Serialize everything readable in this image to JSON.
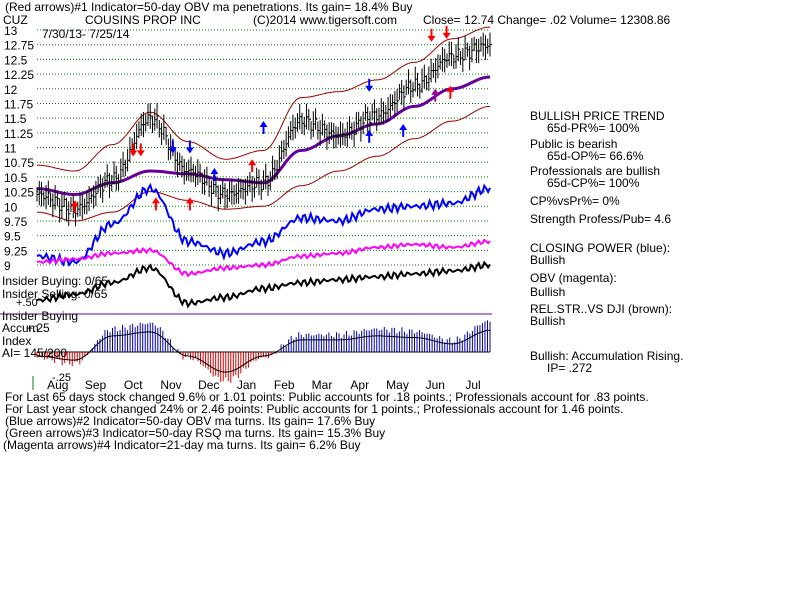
{
  "header": {
    "line1": "(Red arrows)#1 Indicator=50-day OBV ma penetrations. Its gain= 18.4% Buy",
    "ticker": "CUZ",
    "company": "COUSINS PROP INC",
    "copyright": "(C)2014 www.tigersoft.com",
    "quote": "Close=  12.74  Change= .02 Volume= 12308.86",
    "date_range": "7/30/13- 7/25/14"
  },
  "side_panel": {
    "lines": [
      {
        "text": "BULLISH PRICE TREND",
        "indent": false
      },
      {
        "text": "65d-PR%= 100%",
        "indent": true
      },
      {
        "text": "Public is bearish",
        "indent": false
      },
      {
        "text": "65d-OP%= 66.6%",
        "indent": true
      },
      {
        "text": "Professionals are bullish",
        "indent": false
      },
      {
        "text": "65d-CP%= 100%",
        "indent": true
      },
      {
        "text": "CP%vsPr%=  0%",
        "indent": false
      },
      {
        "text": "Strength Profess/Pub= 4.6",
        "indent": false
      },
      {
        "text": "CLOSING POWER (blue):",
        "indent": false
      },
      {
        "text": "Bullish",
        "indent": false
      },
      {
        "text": "OBV (magenta):",
        "indent": false
      },
      {
        "text": "Bullish",
        "indent": false
      },
      {
        "text": "REL.STR..VS DJI (brown):",
        "indent": false
      },
      {
        "text": "Bullish",
        "indent": false
      },
      {
        "text": "Bullish: Accumulation Rising.",
        "indent": false
      },
      {
        "text": "IP=  .272",
        "indent": true
      }
    ]
  },
  "labels": {
    "insider_buying": "Insider Buying: 0/65",
    "insider_selling": "Insider Selling: 0/65",
    "plus50": "+.50",
    "insider_buying2": "Insider Buying",
    "accum": "Accum",
    "plus25": "+.25",
    "index": "Index",
    "ai": "AI= 145/200",
    "minus25": "-.25"
  },
  "footer": {
    "lines": [
      "For Last 65 days stock changed  9.6% or  1.01 points:  Public accounts for  .18 points.;  Professionals account for  .83 points.",
      "For Last year stock changed  24% or  2.46 points:  Public accounts for  1 points.;  Professionals account for  1.46 points.",
      "(Blue arrows)#2 Indicator=50-day OBV ma turns. Its gain= 17.6% Buy",
      "(Green arrows)#3 Indicator=50-day RSQ ma turns. Its gain= 15.3% Buy",
      "(Magenta arrows)#4 Indicator=21-day ma turns. Its gain= 6.2% Buy"
    ]
  },
  "colors": {
    "price": "#000000",
    "band": "#990000",
    "ma_purple": "#660099",
    "closing_power": "#0000ff",
    "obv": "#ff00ff",
    "rel_str": "#000000",
    "red_arrow": "#ff0000",
    "blue_arrow": "#0000ff",
    "accum_up": "#0000aa",
    "accum_down": "#cc0000",
    "grid": "#008000"
  },
  "chart_data": {
    "type": "line",
    "title": "COUSINS PROP INC",
    "y_ticks": [
      "13",
      "12.75",
      "12.5",
      "12.25",
      "12",
      "11.75",
      "11.5",
      "11.25",
      "11",
      "10.75",
      "10.5",
      "10.25",
      "10",
      "9.75",
      "9.5",
      "9.25",
      "9"
    ],
    "x_ticks": [
      "Aug",
      "Sep",
      "Oct",
      "Nov",
      "Dec",
      "Jan",
      "Feb",
      "Mar",
      "Apr",
      "May",
      "Jun",
      "Jul"
    ],
    "ylim": [
      9,
      13
    ],
    "months": [
      0,
      1,
      2,
      3,
      4,
      5,
      6,
      7,
      8,
      9,
      10,
      11,
      12
    ],
    "price": [
      10.2,
      9.95,
      10.45,
      11.5,
      10.6,
      10.2,
      10.4,
      11.45,
      11.2,
      11.55,
      12.05,
      12.55,
      12.74
    ],
    "price_ma": [
      10.3,
      10.2,
      10.4,
      10.6,
      10.55,
      10.45,
      10.4,
      10.95,
      11.2,
      11.4,
      11.7,
      12.0,
      12.2
    ],
    "upper_band": [
      10.7,
      10.6,
      11.05,
      11.6,
      11.1,
      10.8,
      10.95,
      11.85,
      11.95,
      12.15,
      12.45,
      12.85,
      13.05
    ],
    "lower_band": [
      9.9,
      9.75,
      9.9,
      10.25,
      10.1,
      9.95,
      10.0,
      10.35,
      10.6,
      10.85,
      11.15,
      11.45,
      11.7
    ],
    "closing_power": [
      9.15,
      9.05,
      9.7,
      10.3,
      9.4,
      9.2,
      9.4,
      9.8,
      9.75,
      9.95,
      10.0,
      10.05,
      10.3
    ],
    "obv": [
      9.05,
      9.1,
      9.2,
      9.25,
      8.85,
      8.95,
      9.0,
      9.15,
      9.2,
      9.3,
      9.35,
      9.3,
      9.4
    ],
    "rel_str": [
      8.4,
      8.5,
      8.7,
      8.95,
      8.35,
      8.45,
      8.6,
      8.7,
      8.75,
      8.8,
      8.85,
      8.9,
      9.0
    ],
    "accum_index": [
      -0.05,
      -0.1,
      0.2,
      0.25,
      -0.05,
      -0.25,
      -0.05,
      0.15,
      0.15,
      0.2,
      0.18,
      0.1,
      0.27
    ],
    "red_arrows": [
      {
        "m": 1.0,
        "v": 10.05,
        "dir": "up"
      },
      {
        "m": 2.55,
        "v": 10.9,
        "dir": "down"
      },
      {
        "m": 2.75,
        "v": 10.9,
        "dir": "down"
      },
      {
        "m": 3.15,
        "v": 10.1,
        "dir": "up"
      },
      {
        "m": 4.05,
        "v": 10.1,
        "dir": "up"
      },
      {
        "m": 5.7,
        "v": 10.75,
        "dir": "up"
      },
      {
        "m": 10.45,
        "v": 12.85,
        "dir": "down"
      },
      {
        "m": 10.85,
        "v": 12.9,
        "dir": "down"
      },
      {
        "m": 10.95,
        "v": 12.0,
        "dir": "up"
      }
    ],
    "blue_arrows": [
      {
        "m": 3.6,
        "v": 10.95,
        "dir": "down"
      },
      {
        "m": 4.05,
        "v": 10.95,
        "dir": "down"
      },
      {
        "m": 4.7,
        "v": 10.6,
        "dir": "up"
      },
      {
        "m": 6.0,
        "v": 11.4,
        "dir": "up"
      },
      {
        "m": 8.8,
        "v": 12.0,
        "dir": "down"
      },
      {
        "m": 8.8,
        "v": 11.25,
        "dir": "up"
      },
      {
        "m": 9.7,
        "v": 11.35,
        "dir": "up"
      }
    ],
    "magenta_arrows": [
      {
        "m": 10.55,
        "v": 11.95,
        "dir": "up"
      }
    ]
  }
}
